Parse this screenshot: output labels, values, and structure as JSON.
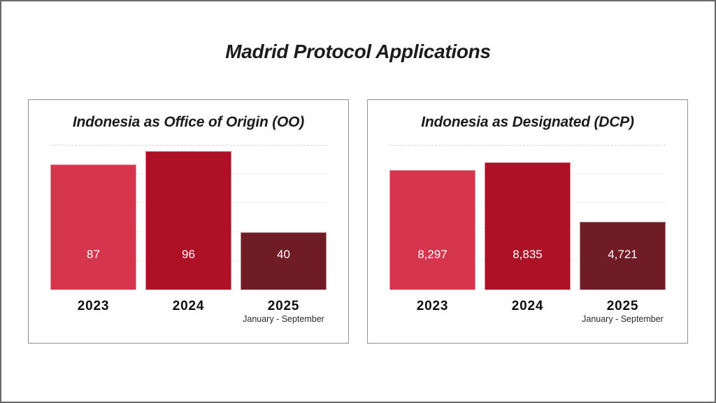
{
  "page": {
    "title": "Madrid Protocol Applications"
  },
  "colors": {
    "bar_2023": "#D5364E",
    "bar_2024": "#AE1126",
    "bar_2025": "#701C27",
    "grid_solid": "#EDEDED",
    "grid_dashed": "#D4D4D4",
    "value_label": "#FFFFFF"
  },
  "chart_data": [
    {
      "type": "bar",
      "title": "Indonesia as Office of Origin (OO)",
      "categories": [
        "2023",
        "2024",
        "2025"
      ],
      "values": [
        87,
        96,
        40
      ],
      "data_labels": [
        "87",
        "96",
        "40"
      ],
      "notes": [
        "",
        "",
        "January - September"
      ],
      "bar_colors": [
        "#D5364E",
        "#AE1126",
        "#701C27"
      ],
      "ylim": [
        0,
        100
      ],
      "gridlines": [
        20,
        40,
        60,
        80,
        100
      ],
      "grid": "on",
      "legend": "none"
    },
    {
      "type": "bar",
      "title": "Indonesia as Designated (DCP)",
      "categories": [
        "2023",
        "2024",
        "2025"
      ],
      "values": [
        8297,
        8835,
        4721
      ],
      "data_labels": [
        "8,297",
        "8,835",
        "4,721"
      ],
      "notes": [
        "",
        "",
        "January - September"
      ],
      "bar_colors": [
        "#D5364E",
        "#AE1126",
        "#701C27"
      ],
      "ylim": [
        0,
        10000
      ],
      "gridlines": [
        2000,
        4000,
        6000,
        8000,
        10000
      ],
      "grid": "on",
      "legend": "none"
    }
  ]
}
